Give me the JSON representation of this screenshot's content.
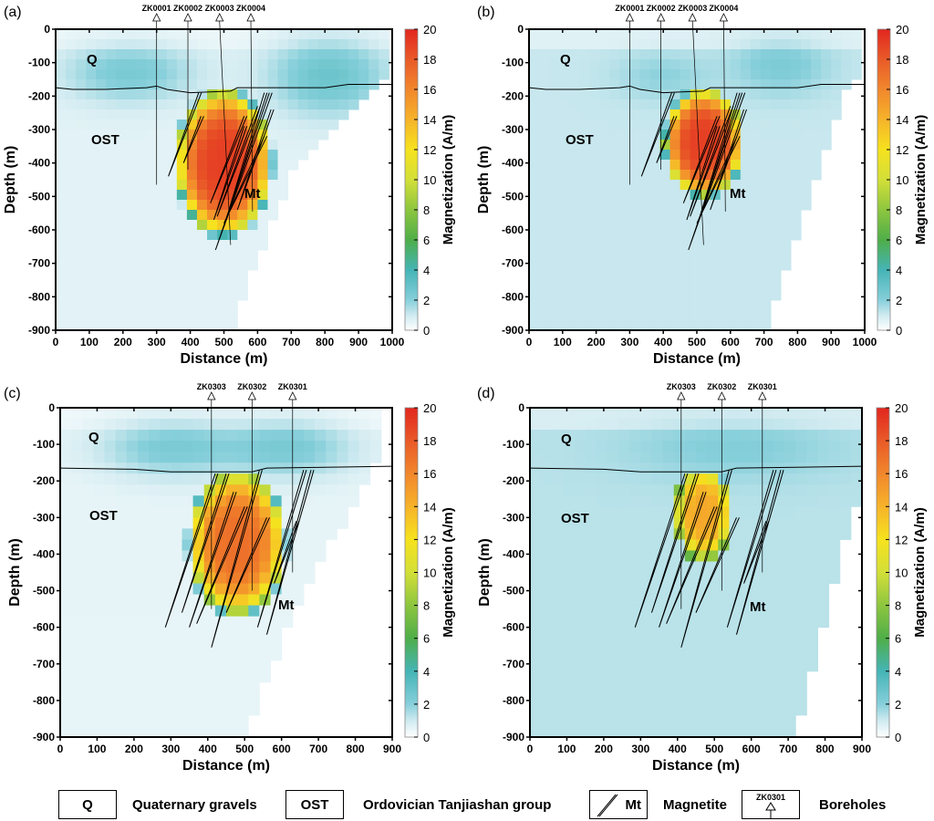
{
  "colorbar": {
    "label": "Magnetization (A/m)",
    "min": 0,
    "max": 20,
    "ticks": [
      0,
      2,
      4,
      6,
      8,
      10,
      12,
      14,
      16,
      18,
      20
    ],
    "colormap": [
      [
        0,
        "#ffffff"
      ],
      [
        1,
        "#cfeaf0"
      ],
      [
        2,
        "#86cfda"
      ],
      [
        4,
        "#45b4b6"
      ],
      [
        6,
        "#4fae49"
      ],
      [
        8,
        "#8dc63f"
      ],
      [
        10,
        "#d3df38"
      ],
      [
        12,
        "#f6e21e"
      ],
      [
        14,
        "#f6b32a"
      ],
      [
        16,
        "#f1872c"
      ],
      [
        18,
        "#e95a28"
      ],
      [
        20,
        "#e2261f"
      ]
    ]
  },
  "legend": {
    "q_symbol": "Q",
    "q_label": "Quaternary gravels",
    "ost_symbol": "OST",
    "ost_label": "Ordovician Tanjiashan group",
    "mt_symbol": "Mt",
    "mt_label": "Magnetite",
    "bh_symbol": "ZK0301",
    "bh_label": "Boreholes"
  },
  "chart_data": [
    {
      "panel": "(a)",
      "type": "heatmap",
      "xlabel": "Distance (m)",
      "ylabel": "Depth (m)",
      "xlim": [
        0,
        1000
      ],
      "ylim": [
        -900,
        0
      ],
      "xticks": [
        0,
        100,
        200,
        300,
        400,
        500,
        600,
        700,
        800,
        900,
        1000
      ],
      "yticks": [
        0,
        -100,
        -200,
        -300,
        -400,
        -500,
        -600,
        -700,
        -800,
        -900
      ],
      "units": {
        "Q": "Q",
        "OST": "OST",
        "Mt": "Mt"
      },
      "baseline": 0.6,
      "model_extent": [
        [
          0,
          0
        ],
        [
          1000,
          0
        ],
        [
          1000,
          -120
        ],
        [
          700,
          -430
        ],
        [
          520,
          -900
        ],
        [
          0,
          -900
        ]
      ],
      "anomaly": {
        "x": 500,
        "y": -400,
        "rx": 150,
        "ry": 230,
        "peak": 19,
        "top": -165
      },
      "shallow": [
        {
          "x": 220,
          "y": -130,
          "sx": 130,
          "sy": 60,
          "v": 1.8
        },
        {
          "x": 810,
          "y": -140,
          "sx": 120,
          "sy": 80,
          "v": 2.2
        }
      ],
      "interface": [
        [
          0,
          -175
        ],
        [
          50,
          -180
        ],
        [
          150,
          -180
        ],
        [
          270,
          -175
        ],
        [
          300,
          -170
        ],
        [
          330,
          -180
        ],
        [
          400,
          -190
        ],
        [
          520,
          -185
        ],
        [
          540,
          -175
        ],
        [
          800,
          -175
        ],
        [
          870,
          -165
        ],
        [
          1000,
          -165
        ]
      ],
      "boreholes": [
        {
          "name": "ZK0001",
          "x": 300,
          "end": [
            300,
            -465
          ]
        },
        {
          "name": "ZK0002",
          "x": 393,
          "end": [
            393,
            -420
          ]
        },
        {
          "name": "ZK0003",
          "x": 487,
          "end": [
            520,
            -645
          ]
        },
        {
          "name": "ZK0004",
          "x": 580,
          "end": [
            585,
            -545
          ]
        }
      ],
      "magnetite": [
        [
          425,
          -190,
          335,
          -440
        ],
        [
          432,
          -260,
          380,
          -400
        ],
        [
          560,
          -260,
          460,
          -520
        ],
        [
          600,
          -230,
          480,
          -560
        ],
        [
          620,
          -190,
          500,
          -590
        ],
        [
          635,
          -190,
          475,
          -660
        ],
        [
          560,
          -290,
          470,
          -570
        ],
        [
          640,
          -240,
          540,
          -540
        ],
        [
          620,
          -320,
          500,
          -580
        ]
      ]
    },
    {
      "panel": "(b)",
      "type": "heatmap",
      "xlabel": "Distance (m)",
      "ylabel": "Depth (m)",
      "xlim": [
        0,
        1000
      ],
      "ylim": [
        -900,
        0
      ],
      "xticks": [
        0,
        100,
        200,
        300,
        400,
        500,
        600,
        700,
        800,
        900,
        1000
      ],
      "yticks": [
        0,
        -100,
        -200,
        -300,
        -400,
        -500,
        -600,
        -700,
        -800,
        -900
      ],
      "units": {
        "Q": "Q",
        "OST": "OST",
        "Mt": "Mt"
      },
      "baseline": 1.1,
      "model_extent": [
        [
          0,
          0
        ],
        [
          1000,
          0
        ],
        [
          1000,
          -100
        ],
        [
          940,
          -200
        ],
        [
          700,
          -900
        ],
        [
          0,
          -900
        ]
      ],
      "anomaly": {
        "x": 520,
        "y": -340,
        "rx": 125,
        "ry": 170,
        "peak": 19,
        "top": -160
      },
      "shallow": [
        {
          "x": 750,
          "y": -110,
          "sx": 100,
          "sy": 60,
          "v": 1.2
        },
        {
          "x": 400,
          "y": -140,
          "sx": 100,
          "sy": 50,
          "v": 0.8
        }
      ],
      "interface": [
        [
          0,
          -175
        ],
        [
          50,
          -180
        ],
        [
          150,
          -180
        ],
        [
          270,
          -175
        ],
        [
          300,
          -170
        ],
        [
          330,
          -180
        ],
        [
          400,
          -190
        ],
        [
          520,
          -185
        ],
        [
          540,
          -175
        ],
        [
          800,
          -175
        ],
        [
          870,
          -165
        ],
        [
          1000,
          -165
        ]
      ],
      "boreholes": [
        {
          "name": "ZK0001",
          "x": 300,
          "end": [
            300,
            -465
          ]
        },
        {
          "name": "ZK0002",
          "x": 393,
          "end": [
            393,
            -420
          ]
        },
        {
          "name": "ZK0003",
          "x": 487,
          "end": [
            520,
            -645
          ]
        },
        {
          "name": "ZK0004",
          "x": 580,
          "end": [
            585,
            -545
          ]
        }
      ],
      "magnetite": [
        [
          425,
          -190,
          335,
          -440
        ],
        [
          432,
          -260,
          380,
          -400
        ],
        [
          560,
          -260,
          460,
          -520
        ],
        [
          600,
          -230,
          480,
          -560
        ],
        [
          620,
          -190,
          500,
          -590
        ],
        [
          635,
          -190,
          475,
          -660
        ],
        [
          560,
          -290,
          470,
          -570
        ],
        [
          640,
          -240,
          540,
          -540
        ],
        [
          620,
          -320,
          500,
          -580
        ]
      ]
    },
    {
      "panel": "(c)",
      "type": "heatmap",
      "xlabel": "Distance (m)",
      "ylabel": "Depth (m)",
      "xlim": [
        0,
        900
      ],
      "ylim": [
        -900,
        0
      ],
      "xticks": [
        0,
        100,
        200,
        300,
        400,
        500,
        600,
        700,
        800,
        900
      ],
      "yticks": [
        0,
        -100,
        -200,
        -300,
        -400,
        -500,
        -600,
        -700,
        -800,
        -900
      ],
      "units": {
        "Q": "Q",
        "OST": "OST",
        "Mt": "Mt"
      },
      "baseline": 0.5,
      "model_extent": [
        [
          0,
          0
        ],
        [
          880,
          0
        ],
        [
          880,
          -90
        ],
        [
          600,
          -640
        ],
        [
          500,
          -900
        ],
        [
          0,
          -900
        ]
      ],
      "anomaly": {
        "x": 480,
        "y": -370,
        "rx": 140,
        "ry": 210,
        "peak": 17,
        "top": -170
      },
      "shallow": [
        {
          "x": 300,
          "y": -110,
          "sx": 130,
          "sy": 55,
          "v": 1.8
        },
        {
          "x": 620,
          "y": -110,
          "sx": 120,
          "sy": 55,
          "v": 1.8
        }
      ],
      "interface": [
        [
          0,
          -165
        ],
        [
          200,
          -168
        ],
        [
          300,
          -175
        ],
        [
          520,
          -175
        ],
        [
          560,
          -165
        ],
        [
          900,
          -160
        ]
      ],
      "boreholes": [
        {
          "name": "ZK0303",
          "x": 410,
          "end": [
            410,
            -550
          ]
        },
        {
          "name": "ZK0302",
          "x": 520,
          "end": [
            520,
            -500
          ]
        },
        {
          "name": "ZK0301",
          "x": 630,
          "end": [
            630,
            -450
          ]
        }
      ],
      "magnetite": [
        [
          420,
          -180,
          285,
          -600
        ],
        [
          450,
          -180,
          330,
          -560
        ],
        [
          470,
          -230,
          350,
          -600
        ],
        [
          500,
          -270,
          370,
          -590
        ],
        [
          540,
          -170,
          410,
          -655
        ],
        [
          560,
          -300,
          450,
          -560
        ],
        [
          660,
          -170,
          535,
          -600
        ],
        [
          680,
          -170,
          560,
          -620
        ],
        [
          640,
          -310,
          580,
          -480
        ]
      ]
    },
    {
      "panel": "(d)",
      "type": "heatmap",
      "xlabel": "Distance (m)",
      "ylabel": "Depth (m)",
      "xlim": [
        0,
        900
      ],
      "ylim": [
        -900,
        0
      ],
      "xticks": [
        0,
        100,
        200,
        300,
        400,
        500,
        600,
        700,
        800,
        900
      ],
      "yticks": [
        0,
        -100,
        -200,
        -300,
        -400,
        -500,
        -600,
        -700,
        -800,
        -900
      ],
      "units": {
        "Q": "Q",
        "OST": "OST",
        "Mt": "Mt"
      },
      "baseline": 1.3,
      "model_extent": [
        [
          0,
          0
        ],
        [
          900,
          0
        ],
        [
          900,
          -200
        ],
        [
          720,
          -900
        ],
        [
          0,
          -900
        ]
      ],
      "anomaly": {
        "x": 470,
        "y": -290,
        "rx": 85,
        "ry": 140,
        "peak": 14.5,
        "top": -170
      },
      "shallow": [
        {
          "x": 550,
          "y": -110,
          "sx": 200,
          "sy": 60,
          "v": 0.8
        }
      ],
      "interface": [
        [
          0,
          -165
        ],
        [
          200,
          -168
        ],
        [
          300,
          -175
        ],
        [
          520,
          -175
        ],
        [
          560,
          -165
        ],
        [
          900,
          -160
        ]
      ],
      "boreholes": [
        {
          "name": "ZK0303",
          "x": 410,
          "end": [
            410,
            -550
          ]
        },
        {
          "name": "ZK0302",
          "x": 520,
          "end": [
            520,
            -500
          ]
        },
        {
          "name": "ZK0301",
          "x": 630,
          "end": [
            630,
            -450
          ]
        }
      ],
      "magnetite": [
        [
          420,
          -180,
          285,
          -600
        ],
        [
          450,
          -180,
          330,
          -560
        ],
        [
          470,
          -230,
          350,
          -600
        ],
        [
          500,
          -270,
          370,
          -590
        ],
        [
          540,
          -170,
          410,
          -655
        ],
        [
          560,
          -300,
          450,
          -560
        ],
        [
          660,
          -170,
          535,
          -600
        ],
        [
          680,
          -170,
          560,
          -620
        ],
        [
          640,
          -310,
          580,
          -480
        ]
      ]
    }
  ]
}
